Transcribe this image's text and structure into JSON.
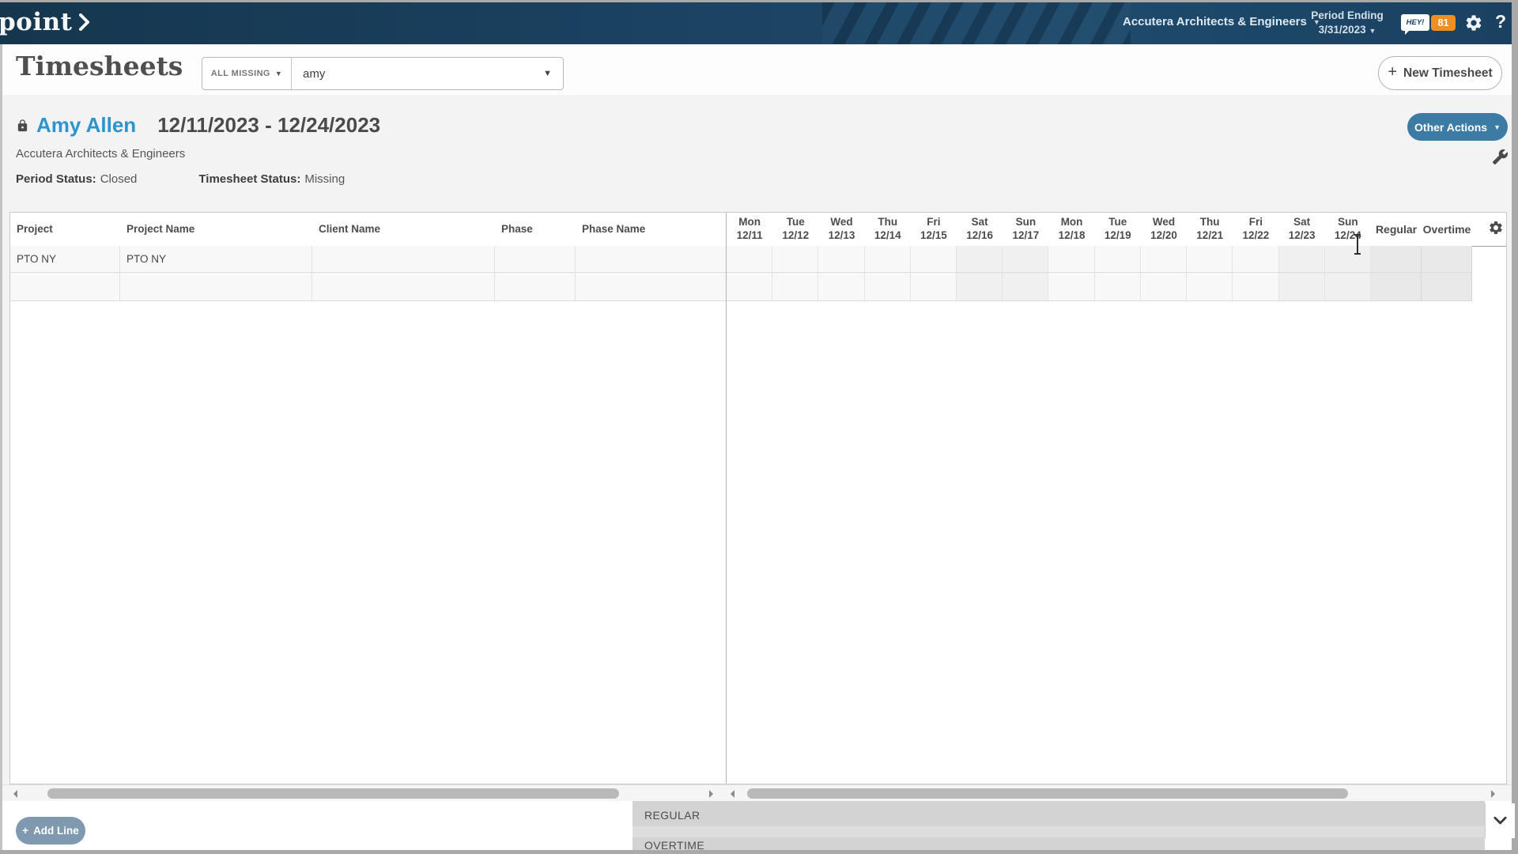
{
  "topbar": {
    "logo_text": "point",
    "org_name": "Accutera Architects & Engineers",
    "period_label": "Period Ending",
    "period_value": "3/31/2023",
    "hey_text": "HEY!",
    "badge_count": "81",
    "help_label": "?"
  },
  "toolbar": {
    "title": "Timesheets",
    "status_filter": "ALL MISSING",
    "person_filter": "amy",
    "new_timesheet_label": "New Timesheet",
    "plus": "+"
  },
  "sheet": {
    "employee": "Amy Allen",
    "date_range": "12/11/2023 - 12/24/2023",
    "company": "Accutera Architects & Engineers",
    "period_status_label": "Period Status:",
    "period_status_value": "Closed",
    "timesheet_status_label": "Timesheet Status:",
    "timesheet_status_value": "Missing",
    "other_actions_label": "Other Actions"
  },
  "table": {
    "left_columns": [
      "Project",
      "Project Name",
      "Client Name",
      "Phase",
      "Phase Name"
    ],
    "day_columns": [
      {
        "dow": "Mon",
        "date": "12/11",
        "weekend": false
      },
      {
        "dow": "Tue",
        "date": "12/12",
        "weekend": false
      },
      {
        "dow": "Wed",
        "date": "12/13",
        "weekend": false
      },
      {
        "dow": "Thu",
        "date": "12/14",
        "weekend": false
      },
      {
        "dow": "Fri",
        "date": "12/15",
        "weekend": false
      },
      {
        "dow": "Sat",
        "date": "12/16",
        "weekend": true
      },
      {
        "dow": "Sun",
        "date": "12/17",
        "weekend": true
      },
      {
        "dow": "Mon",
        "date": "12/18",
        "weekend": false
      },
      {
        "dow": "Tue",
        "date": "12/19",
        "weekend": false
      },
      {
        "dow": "Wed",
        "date": "12/20",
        "weekend": false
      },
      {
        "dow": "Thu",
        "date": "12/21",
        "weekend": false
      },
      {
        "dow": "Fri",
        "date": "12/22",
        "weekend": false
      },
      {
        "dow": "Sat",
        "date": "12/23",
        "weekend": true
      },
      {
        "dow": "Sun",
        "date": "12/24",
        "weekend": true
      }
    ],
    "total_columns": [
      "Regular",
      "Overtime"
    ],
    "rows": [
      {
        "project": "PTO NY",
        "project_name": "PTO NY",
        "client_name": "",
        "phase": "",
        "phase_name": "",
        "days": [
          "",
          "",
          "",
          "",
          "",
          "",
          "",
          "",
          "",
          "",
          "",
          "",
          "",
          ""
        ],
        "regular": "",
        "overtime": ""
      },
      {
        "project": "",
        "project_name": "",
        "client_name": "",
        "phase": "",
        "phase_name": "",
        "days": [
          "",
          "",
          "",
          "",
          "",
          "",
          "",
          "",
          "",
          "",
          "",
          "",
          "",
          ""
        ],
        "regular": "",
        "overtime": ""
      }
    ]
  },
  "footer": {
    "add_line_label": "Add Line",
    "plus": "+",
    "summary_rows": [
      "REGULAR",
      "OVERTIME"
    ]
  },
  "colors": {
    "topbar_navy": "#1a4160",
    "link_blue": "#2d94cc",
    "button_steel": "#3c7ba3",
    "button_slate": "#7f9ab0",
    "badge_orange": "#ee8f21",
    "summary_gray": "#d3d3d3"
  }
}
